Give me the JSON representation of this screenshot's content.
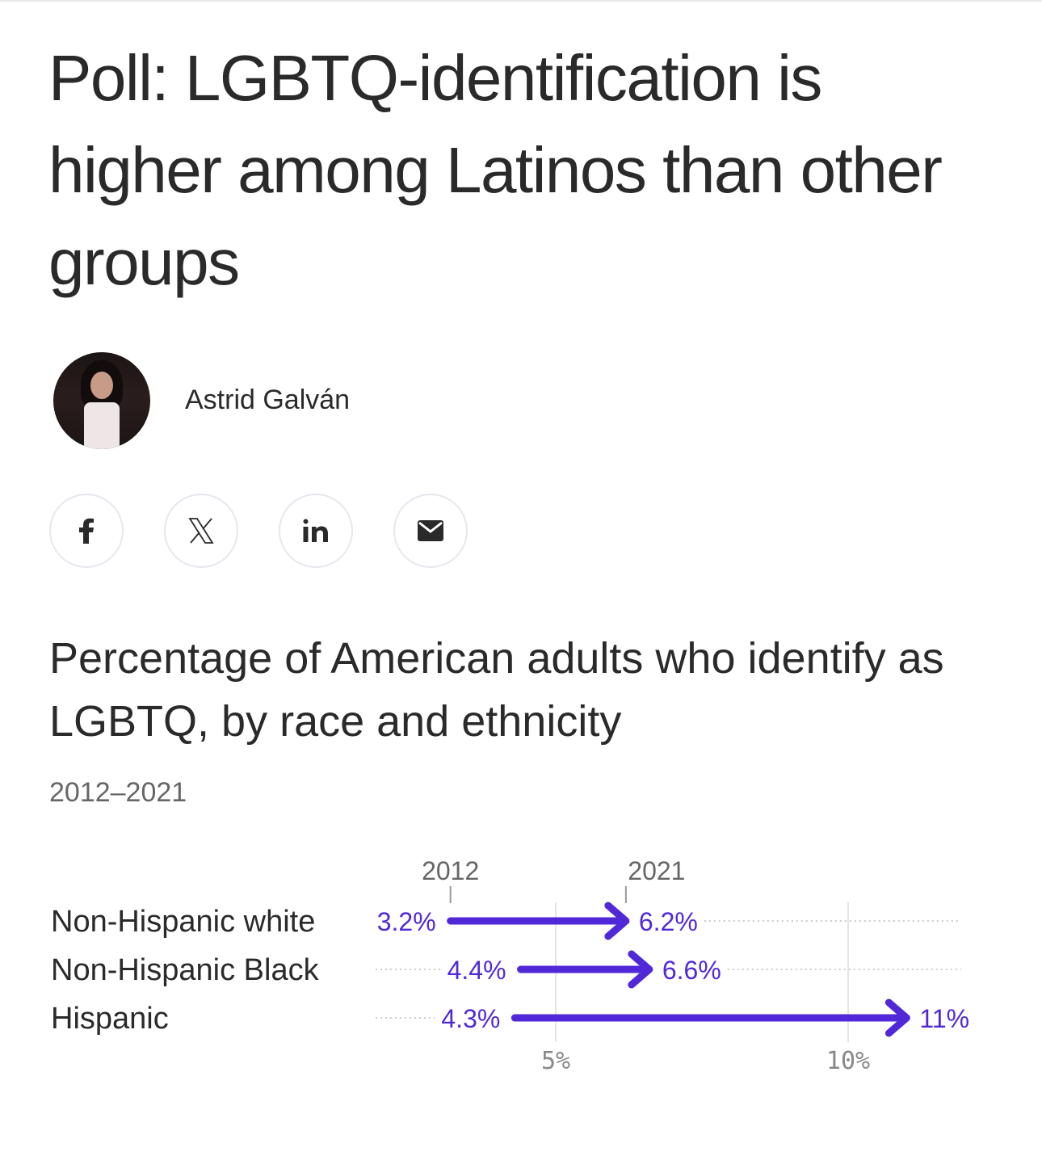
{
  "article": {
    "title": "Poll: LGBTQ-identification is higher among Latinos than other groups",
    "author": "Astrid Galván",
    "share_buttons": [
      {
        "name": "facebook",
        "icon": "facebook-icon"
      },
      {
        "name": "x",
        "icon": "x-icon"
      },
      {
        "name": "linkedin",
        "icon": "linkedin-icon"
      },
      {
        "name": "email",
        "icon": "email-icon"
      }
    ]
  },
  "chart_data": {
    "type": "arrow",
    "title": "Percentage of American adults who identify as LGBTQ, by race and ethnicity",
    "subtitle": "2012–2021",
    "start_label": "2012",
    "end_label": "2021",
    "categories": [
      "Non-Hispanic white",
      "Non-Hispanic Black",
      "Hispanic"
    ],
    "series": [
      {
        "name": "2012",
        "values": [
          3.2,
          4.4,
          4.3
        ],
        "labels": [
          "3.2%",
          "4.4%",
          "4.3%"
        ]
      },
      {
        "name": "2021",
        "values": [
          6.2,
          6.6,
          11
        ],
        "labels": [
          "6.2%",
          "6.6%",
          "11%"
        ]
      }
    ],
    "x_ticks": [
      5,
      10
    ],
    "x_tick_labels": [
      "5%",
      "10%"
    ],
    "xlim": [
      0,
      12
    ],
    "grid": true,
    "color": "#5028d8"
  }
}
